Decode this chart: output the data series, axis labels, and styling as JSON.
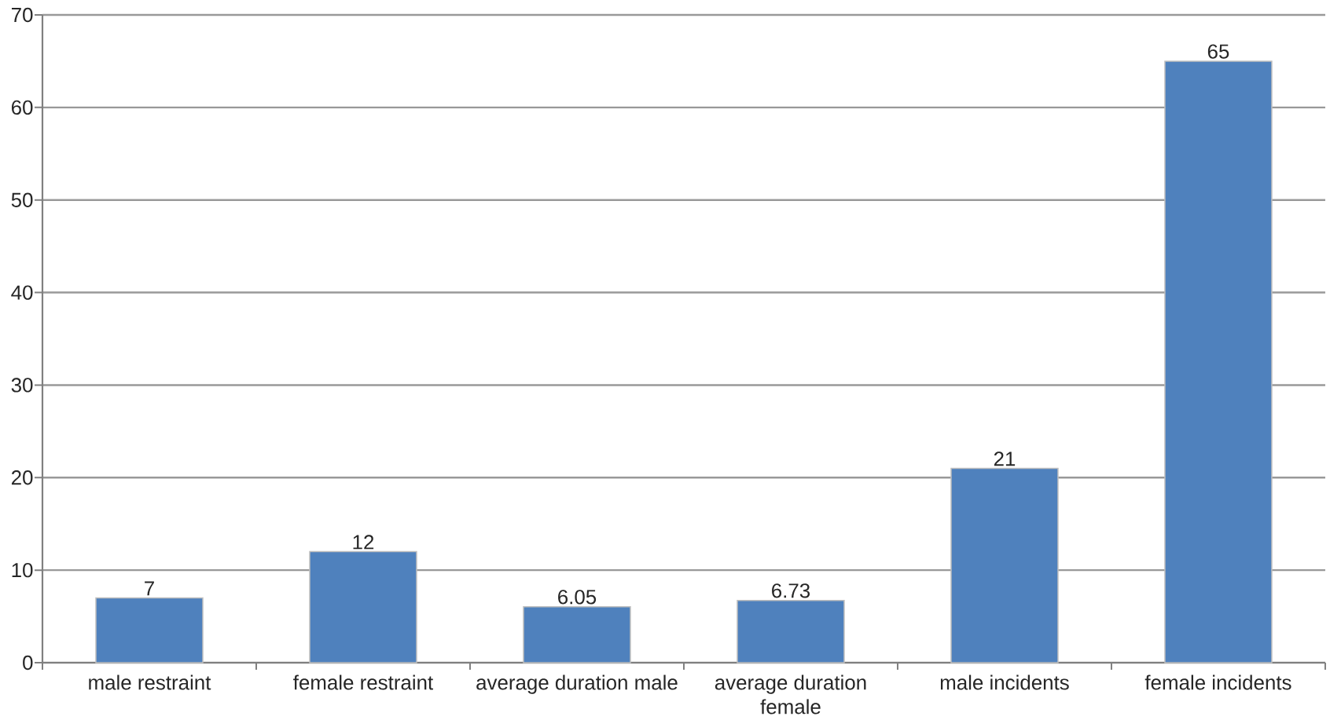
{
  "chart_data": {
    "type": "bar",
    "categories": [
      "male restraint",
      "female restraint",
      "average duration male",
      "average duration female",
      "male incidents",
      "female incidents"
    ],
    "values": [
      7,
      12,
      6.05,
      6.73,
      21,
      65
    ],
    "color": "#4f81bd",
    "ylim": [
      0,
      70
    ],
    "yticks": [
      0,
      10,
      20,
      30,
      40,
      50,
      60,
      70
    ],
    "grid": "y",
    "data_labels": true
  }
}
